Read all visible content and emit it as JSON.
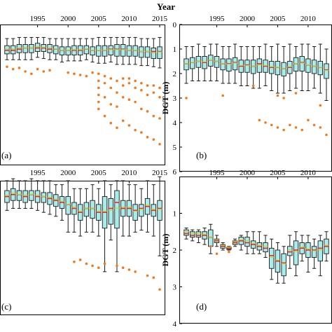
{
  "figure": {
    "top_label": "Year",
    "y_axis_label": "DGT (m)",
    "flier_color": "#f07a1e",
    "box_fill": "#a8ecec",
    "box_edge": "#1a1a1a",
    "median_color": "#e8282a",
    "mean_color": "#b8dc2a"
  },
  "chart_data": [
    {
      "type": "boxplot",
      "panel": "(a)",
      "x_ticks": [
        "1995",
        "2000",
        "2005",
        "2010",
        "2015"
      ],
      "y_ticks": [],
      "ylabel": "",
      "ylim": [
        0,
        6
      ],
      "x_range": [
        1990,
        2015
      ],
      "years": [
        1990,
        1991,
        1992,
        1993,
        1994,
        1995,
        1996,
        1997,
        1998,
        1999,
        2000,
        2001,
        2002,
        2003,
        2004,
        2005,
        2006,
        2007,
        2008,
        2009,
        2010,
        2011,
        2012,
        2013,
        2014,
        2015
      ],
      "boxes": [
        [
          0.6,
          0.9,
          1.1,
          1.25,
          1.5
        ],
        [
          0.6,
          0.9,
          1.1,
          1.25,
          1.5
        ],
        [
          0.55,
          0.85,
          1.05,
          1.2,
          1.5
        ],
        [
          0.55,
          0.85,
          1.0,
          1.2,
          1.5
        ],
        [
          0.55,
          0.85,
          1.0,
          1.2,
          1.5
        ],
        [
          0.55,
          0.8,
          1.0,
          1.15,
          1.4
        ],
        [
          0.55,
          0.85,
          1.0,
          1.15,
          1.45
        ],
        [
          0.6,
          0.85,
          1.05,
          1.2,
          1.5
        ],
        [
          0.6,
          0.9,
          1.05,
          1.25,
          1.5
        ],
        [
          0.6,
          0.95,
          1.1,
          1.3,
          1.6
        ],
        [
          0.6,
          0.95,
          1.1,
          1.3,
          1.55
        ],
        [
          0.6,
          0.9,
          1.1,
          1.3,
          1.55
        ],
        [
          0.6,
          0.9,
          1.1,
          1.3,
          1.55
        ],
        [
          0.6,
          0.9,
          1.05,
          1.25,
          1.5
        ],
        [
          0.6,
          0.95,
          1.1,
          1.3,
          1.6
        ],
        [
          0.55,
          0.9,
          1.1,
          1.35,
          1.65
        ],
        [
          0.55,
          0.9,
          1.1,
          1.35,
          1.65
        ],
        [
          0.55,
          0.9,
          1.05,
          1.3,
          1.6
        ],
        [
          0.55,
          0.85,
          1.05,
          1.35,
          1.7
        ],
        [
          0.55,
          0.85,
          1.05,
          1.35,
          1.7
        ],
        [
          0.55,
          0.9,
          1.1,
          1.35,
          1.7
        ],
        [
          0.55,
          0.9,
          1.1,
          1.35,
          1.7
        ],
        [
          0.6,
          0.95,
          1.15,
          1.4,
          1.75
        ],
        [
          0.6,
          0.95,
          1.15,
          1.4,
          1.75
        ],
        [
          0.6,
          1.0,
          1.15,
          1.45,
          1.8
        ],
        [
          0.55,
          0.95,
          1.15,
          1.45,
          1.85
        ]
      ],
      "fliers": [
        [
          1990,
          1.8
        ],
        [
          1991,
          1.9
        ],
        [
          1992,
          1.85
        ],
        [
          1993,
          2.0
        ],
        [
          1994,
          2.1
        ],
        [
          1995,
          1.9
        ],
        [
          1996,
          2.0
        ],
        [
          1997,
          1.95
        ],
        [
          2000,
          2.05
        ],
        [
          2001,
          2.1
        ],
        [
          2002,
          2.15
        ],
        [
          2003,
          2.2
        ],
        [
          2004,
          2.05
        ],
        [
          2005,
          2.1
        ],
        [
          2005,
          2.4
        ],
        [
          2005,
          2.7
        ],
        [
          2005,
          3.0
        ],
        [
          2005,
          3.3
        ],
        [
          2005,
          3.6
        ],
        [
          2006,
          2.2
        ],
        [
          2006,
          2.5
        ],
        [
          2006,
          3.1
        ],
        [
          2006,
          3.9
        ],
        [
          2007,
          2.3
        ],
        [
          2007,
          2.7
        ],
        [
          2007,
          3.4
        ],
        [
          2007,
          4.2
        ],
        [
          2008,
          2.4
        ],
        [
          2008,
          2.9
        ],
        [
          2008,
          3.5
        ],
        [
          2008,
          4.4
        ],
        [
          2009,
          2.3
        ],
        [
          2009,
          2.6
        ],
        [
          2009,
          3.1
        ],
        [
          2009,
          4.1
        ],
        [
          2010,
          2.3
        ],
        [
          2010,
          2.5
        ],
        [
          2010,
          3.2
        ],
        [
          2010,
          4.3
        ],
        [
          2011,
          2.4
        ],
        [
          2011,
          2.7
        ],
        [
          2011,
          3.3
        ],
        [
          2011,
          4.5
        ],
        [
          2012,
          2.5
        ],
        [
          2012,
          2.8
        ],
        [
          2012,
          3.6
        ],
        [
          2012,
          4.6
        ],
        [
          2013,
          2.6
        ],
        [
          2013,
          3.0
        ],
        [
          2013,
          3.7
        ],
        [
          2013,
          4.8
        ],
        [
          2014,
          2.6
        ],
        [
          2014,
          2.9
        ],
        [
          2014,
          3.9
        ],
        [
          2014,
          4.9
        ],
        [
          2015,
          2.7
        ],
        [
          2015,
          3.1
        ],
        [
          2015,
          4.0
        ],
        [
          2015,
          5.1
        ]
      ]
    },
    {
      "type": "boxplot",
      "panel": "(b)",
      "x_ticks": [
        "1995",
        "2000",
        "2005",
        "2010"
      ],
      "y_ticks": [
        "0",
        "1",
        "2",
        "3",
        "4",
        "5",
        "6"
      ],
      "ylabel": "DGT (m)",
      "ylim": [
        0,
        6
      ],
      "x_range": [
        1990,
        2013
      ],
      "years": [
        1990,
        1991,
        1992,
        1993,
        1994,
        1995,
        1996,
        1997,
        1998,
        1999,
        2000,
        2001,
        2002,
        2003,
        2004,
        2005,
        2006,
        2007,
        2008,
        2009,
        2010,
        2011,
        2012,
        2013
      ],
      "boxes": [
        [
          0.9,
          1.4,
          1.6,
          1.85,
          2.4
        ],
        [
          0.9,
          1.35,
          1.55,
          1.8,
          2.3
        ],
        [
          0.8,
          1.3,
          1.5,
          1.75,
          2.3
        ],
        [
          0.9,
          1.3,
          1.55,
          1.8,
          2.3
        ],
        [
          0.8,
          1.25,
          1.45,
          1.7,
          2.3
        ],
        [
          0.8,
          1.3,
          1.5,
          1.75,
          2.3
        ],
        [
          0.9,
          1.4,
          1.6,
          1.85,
          2.4
        ],
        [
          0.9,
          1.4,
          1.6,
          1.9,
          2.4
        ],
        [
          0.8,
          1.35,
          1.55,
          1.85,
          2.4
        ],
        [
          0.9,
          1.45,
          1.7,
          1.95,
          2.5
        ],
        [
          0.9,
          1.45,
          1.65,
          1.95,
          2.5
        ],
        [
          0.9,
          1.45,
          1.7,
          2.0,
          2.6
        ],
        [
          0.9,
          1.4,
          1.6,
          1.95,
          2.6
        ],
        [
          0.8,
          1.45,
          1.7,
          1.95,
          2.5
        ],
        [
          0.9,
          1.5,
          1.75,
          2.0,
          2.7
        ],
        [
          0.8,
          1.5,
          1.75,
          2.05,
          2.8
        ],
        [
          0.9,
          1.55,
          1.8,
          2.1,
          2.8
        ],
        [
          0.8,
          1.5,
          1.75,
          2.0,
          2.7
        ],
        [
          0.9,
          1.35,
          1.6,
          1.9,
          2.6
        ],
        [
          0.8,
          1.3,
          1.55,
          1.9,
          2.7
        ],
        [
          0.8,
          1.4,
          1.65,
          1.95,
          2.7
        ],
        [
          0.9,
          1.45,
          1.7,
          2.0,
          2.6
        ],
        [
          0.8,
          1.5,
          1.75,
          2.05,
          2.8
        ],
        [
          1.0,
          1.6,
          1.85,
          2.2,
          3.1
        ]
      ],
      "fliers": [
        [
          1990,
          3.0
        ],
        [
          1996,
          2.9
        ],
        [
          2001,
          2.5
        ],
        [
          2002,
          3.9
        ],
        [
          2003,
          4.0
        ],
        [
          2004,
          4.1
        ],
        [
          2005,
          2.9
        ],
        [
          2005,
          4.2
        ],
        [
          2006,
          3.0
        ],
        [
          2006,
          4.3
        ],
        [
          2007,
          4.1
        ],
        [
          2008,
          2.8
        ],
        [
          2008,
          4.2
        ],
        [
          2009,
          4.3
        ],
        [
          2010,
          3.9
        ],
        [
          2011,
          4.1
        ],
        [
          2012,
          3.3
        ],
        [
          2012,
          4.2
        ],
        [
          2013,
          4.5
        ]
      ]
    },
    {
      "type": "boxplot",
      "panel": "(c)",
      "x_ticks": [
        "1995",
        "2000",
        "2005",
        "2010",
        "2015"
      ],
      "y_ticks": [],
      "ylabel": "",
      "ylim": [
        0,
        4
      ],
      "x_range": [
        1990,
        2015
      ],
      "years": [
        1990,
        1991,
        1992,
        1993,
        1994,
        1995,
        1996,
        1997,
        1998,
        1999,
        2000,
        2001,
        2002,
        2003,
        2004,
        2005,
        2006,
        2007,
        2008,
        2009,
        2010,
        2011,
        2012,
        2013,
        2014,
        2015
      ],
      "boxes": [
        [
          0.6,
          0.85,
          1.0,
          1.15,
          1.35
        ],
        [
          0.55,
          0.8,
          0.95,
          1.1,
          1.3
        ],
        [
          0.6,
          0.85,
          0.95,
          1.1,
          1.3
        ],
        [
          0.6,
          0.85,
          1.0,
          1.15,
          1.3
        ],
        [
          0.55,
          0.85,
          0.95,
          1.1,
          1.3
        ],
        [
          0.6,
          0.85,
          1.0,
          1.15,
          1.35
        ],
        [
          0.6,
          0.9,
          1.0,
          1.15,
          1.4
        ],
        [
          0.6,
          0.9,
          1.05,
          1.2,
          1.45
        ],
        [
          0.7,
          0.95,
          1.1,
          1.25,
          1.5
        ],
        [
          0.7,
          1.0,
          1.15,
          1.3,
          1.6
        ],
        [
          0.6,
          1.0,
          1.2,
          1.45,
          1.9
        ],
        [
          0.8,
          1.15,
          1.3,
          1.45,
          1.9
        ],
        [
          0.8,
          1.2,
          1.4,
          1.6,
          2.0
        ],
        [
          0.8,
          1.15,
          1.3,
          1.5,
          1.9
        ],
        [
          0.7,
          1.1,
          1.3,
          1.55,
          1.9
        ],
        [
          0.8,
          1.2,
          1.4,
          1.6,
          2.0
        ],
        [
          0.6,
          1.0,
          1.4,
          1.8,
          2.9
        ],
        [
          0.7,
          1.05,
          1.3,
          1.7,
          2.1
        ],
        [
          0.6,
          0.85,
          1.15,
          1.8,
          2.9
        ],
        [
          0.6,
          1.1,
          1.3,
          1.5,
          2.0
        ],
        [
          0.7,
          1.1,
          1.3,
          1.5,
          2.0
        ],
        [
          0.7,
          1.2,
          1.35,
          1.6,
          1.9
        ],
        [
          0.8,
          1.2,
          1.3,
          1.5,
          1.85
        ],
        [
          0.6,
          1.05,
          1.25,
          1.45,
          1.9
        ],
        [
          0.7,
          1.2,
          1.35,
          1.5,
          2.0
        ],
        [
          0.5,
          1.1,
          1.3,
          1.6,
          2.5
        ]
      ],
      "fliers": [
        [
          2001,
          2.65
        ],
        [
          2002,
          2.6
        ],
        [
          2003,
          2.7
        ],
        [
          2004,
          2.75
        ],
        [
          2005,
          2.8
        ],
        [
          2006,
          2.7
        ],
        [
          2008,
          2.75
        ],
        [
          2009,
          2.8
        ],
        [
          2010,
          2.85
        ],
        [
          2011,
          2.9
        ],
        [
          2013,
          3.0
        ],
        [
          2014,
          3.05
        ],
        [
          2015,
          3.35
        ]
      ]
    },
    {
      "type": "boxplot",
      "panel": "(d)",
      "x_ticks": [],
      "y_ticks": [
        "1",
        "2",
        "3",
        "4"
      ],
      "ylabel": "DGT (m)",
      "ylim": [
        0,
        4
      ],
      "x_range": [
        1990,
        2013
      ],
      "years": [
        1990,
        1991,
        1992,
        1993,
        1994,
        1995,
        1996,
        1997,
        1998,
        1999,
        2000,
        2001,
        2002,
        2003,
        2004,
        2005,
        2006,
        2007,
        2008,
        2009,
        2010,
        2011,
        2012,
        2013
      ],
      "boxes": [
        [
          1.4,
          1.45,
          1.55,
          1.6,
          1.7
        ],
        [
          1.45,
          1.5,
          1.6,
          1.65,
          1.75
        ],
        [
          1.45,
          1.5,
          1.6,
          1.65,
          1.8
        ],
        [
          1.4,
          1.5,
          1.6,
          1.7,
          1.85
        ],
        [
          1.3,
          1.45,
          1.65,
          1.9,
          2.1
        ],
        [
          1.6,
          1.7,
          1.75,
          1.8,
          1.9
        ],
        [
          1.8,
          1.85,
          1.9,
          1.95,
          2.0
        ],
        [
          1.9,
          1.92,
          1.95,
          1.98,
          2.0
        ],
        [
          1.7,
          1.75,
          1.8,
          1.85,
          1.9
        ],
        [
          1.6,
          1.65,
          1.75,
          1.85,
          2.0
        ],
        [
          1.5,
          1.65,
          1.8,
          1.9,
          2.1
        ],
        [
          1.5,
          1.75,
          1.85,
          1.95,
          2.1
        ],
        [
          1.5,
          1.8,
          1.9,
          2.0,
          2.1
        ],
        [
          1.6,
          1.8,
          1.95,
          2.05,
          2.2
        ],
        [
          1.7,
          1.95,
          2.15,
          2.5,
          2.8
        ],
        [
          1.8,
          2.0,
          2.3,
          2.6,
          2.9
        ],
        [
          1.9,
          2.1,
          2.35,
          2.7,
          2.9
        ],
        [
          1.6,
          1.9,
          2.05,
          2.15,
          2.5
        ],
        [
          1.5,
          1.75,
          2.0,
          2.4,
          2.7
        ],
        [
          1.6,
          1.8,
          1.95,
          2.1,
          2.3
        ],
        [
          1.6,
          1.8,
          2.0,
          2.2,
          2.6
        ],
        [
          1.7,
          1.9,
          2.0,
          2.2,
          2.5
        ],
        [
          1.6,
          1.75,
          1.95,
          2.3,
          2.7
        ],
        [
          1.5,
          1.7,
          1.9,
          2.1,
          2.3
        ]
      ],
      "fliers": [
        [
          1994,
          1.9
        ],
        [
          1995,
          2.1
        ],
        [
          1997,
          2.05
        ]
      ]
    }
  ]
}
